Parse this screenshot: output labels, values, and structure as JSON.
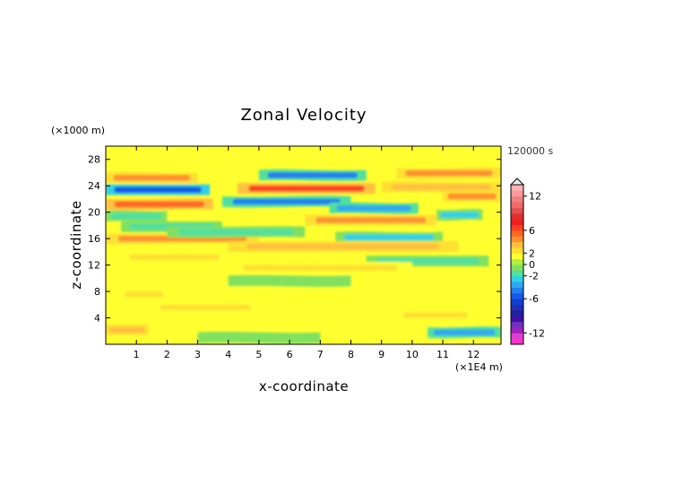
{
  "chart_data": {
    "type": "heatmap",
    "title": "Zonal Velocity",
    "xlabel": "x-coordinate",
    "ylabel": "z-coordinate",
    "x_unit": "(×1E4 m)",
    "y_unit": "(×1000 m)",
    "time_label": "120000 s",
    "xlim": [
      0,
      12.9
    ],
    "ylim": [
      0,
      30
    ],
    "x_ticks": [
      1,
      2,
      3,
      4,
      5,
      6,
      7,
      8,
      9,
      10,
      11,
      12
    ],
    "y_ticks": [
      4,
      8,
      12,
      16,
      20,
      24,
      28
    ],
    "colorbar": {
      "levels": [
        -14,
        -13,
        -12,
        -11,
        -10,
        -9,
        -8,
        -7,
        -6,
        -5,
        -4,
        -3,
        -2,
        -1,
        0,
        1,
        2,
        3,
        4,
        5,
        6,
        7,
        8,
        9,
        10,
        11,
        12,
        13,
        14
      ],
      "colors": [
        "#ff33cc",
        "#e040d0",
        "#a020c0",
        "#7030c0",
        "#4010a0",
        "#2020a0",
        "#2030b0",
        "#1040d0",
        "#1858e8",
        "#2080f0",
        "#30a8f0",
        "#30d0e8",
        "#50e0a0",
        "#80e060",
        "#b0f040",
        "#ffff30",
        "#ffe030",
        "#ffc040",
        "#ff9030",
        "#ff6820",
        "#ff4020",
        "#f02020",
        "#e03030",
        "#e05050",
        "#f06868",
        "#f08080",
        "#f89898",
        "#ffb0b0"
      ],
      "tick_labels": [
        "12",
        "6",
        "2",
        "0",
        "-2",
        "-6",
        "-12"
      ],
      "tick_values": [
        12,
        6,
        2,
        0,
        -2,
        -6,
        -12
      ],
      "over_arrow": true
    },
    "bands": [
      {
        "z": 25.2,
        "x0": 0.0,
        "x1": 3.0,
        "value": 4
      },
      {
        "z": 23.4,
        "x0": 0.0,
        "x1": 3.4,
        "value": -6
      },
      {
        "z": 21.2,
        "x0": 0.0,
        "x1": 3.5,
        "value": 5
      },
      {
        "z": 19.4,
        "x0": 0.0,
        "x1": 2.0,
        "value": -2
      },
      {
        "z": 17.8,
        "x0": 0.5,
        "x1": 3.8,
        "value": -2
      },
      {
        "z": 16.0,
        "x0": 0.0,
        "x1": 5.0,
        "value": 4
      },
      {
        "z": 25.6,
        "x0": 5.0,
        "x1": 8.5,
        "value": -5
      },
      {
        "z": 23.6,
        "x0": 4.3,
        "x1": 8.8,
        "value": 6
      },
      {
        "z": 21.6,
        "x0": 3.8,
        "x1": 8.0,
        "value": -5
      },
      {
        "z": 20.6,
        "x0": 7.3,
        "x1": 10.2,
        "value": -4
      },
      {
        "z": 18.8,
        "x0": 6.5,
        "x1": 10.8,
        "value": 4
      },
      {
        "z": 17.0,
        "x0": 2.0,
        "x1": 6.5,
        "value": -2
      },
      {
        "z": 16.2,
        "x0": 7.5,
        "x1": 11.0,
        "value": -3
      },
      {
        "z": 14.8,
        "x0": 4.0,
        "x1": 11.5,
        "value": 3
      },
      {
        "z": 25.9,
        "x0": 9.5,
        "x1": 12.9,
        "value": 4
      },
      {
        "z": 23.8,
        "x0": 9.0,
        "x1": 12.9,
        "value": 3
      },
      {
        "z": 22.4,
        "x0": 11.0,
        "x1": 12.9,
        "value": 4
      },
      {
        "z": 19.6,
        "x0": 10.8,
        "x1": 12.3,
        "value": -3
      },
      {
        "z": 13.2,
        "x0": 0.5,
        "x1": 4.0,
        "value": 2
      },
      {
        "z": 12.6,
        "x0": 8.5,
        "x1": 12.5,
        "value": -2
      },
      {
        "z": 11.6,
        "x0": 4.0,
        "x1": 10.0,
        "value": 2
      },
      {
        "z": 9.6,
        "x0": 4.0,
        "x1": 8.0,
        "value": -1
      },
      {
        "z": 7.6,
        "x0": 0.5,
        "x1": 2.0,
        "value": 2
      },
      {
        "z": 5.6,
        "x0": 1.5,
        "x1": 5.0,
        "value": 2
      },
      {
        "z": 4.4,
        "x0": 9.5,
        "x1": 12.0,
        "value": 2
      },
      {
        "z": 2.2,
        "x0": 0.0,
        "x1": 1.4,
        "value": 3
      },
      {
        "z": 1.8,
        "x0": 10.5,
        "x1": 12.9,
        "value": -4
      },
      {
        "z": 1.0,
        "x0": 3.0,
        "x1": 7.0,
        "value": -1
      }
    ]
  }
}
